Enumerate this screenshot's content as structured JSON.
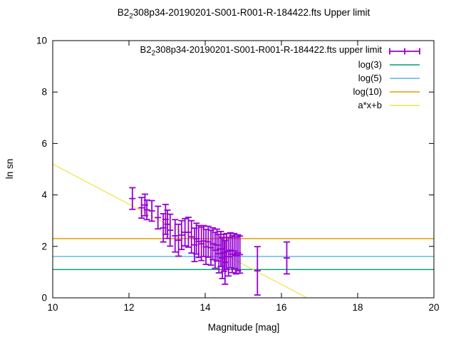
{
  "chart_data": {
    "type": "scatter",
    "title": {
      "prefix": "B2",
      "sub": "2",
      "rest": "308p34-20190201-S001-R001-R-184422.fts Upper limit"
    },
    "xlabel": "Magnitude [mag]",
    "ylabel": "ln sn",
    "xlim": [
      10,
      20
    ],
    "ylim": [
      0,
      10
    ],
    "xticks": [
      10,
      12,
      14,
      16,
      18,
      20
    ],
    "yticks": [
      0,
      2,
      4,
      6,
      8,
      10
    ],
    "grid": false,
    "legend_position": "top-right-inside",
    "background_color": "#ffffff",
    "frame_color": "#000000",
    "series": {
      "name_prefix": "B2",
      "name_sub": "2",
      "name_rest": "308p34-20190201-S001-R001-R-184422.fts upper limit",
      "style": "errorbars",
      "color": "#9400d3",
      "points": [
        [
          12.09,
          3.86,
          0.42
        ],
        [
          12.33,
          3.5,
          0.4
        ],
        [
          12.42,
          3.61,
          0.42
        ],
        [
          12.47,
          3.42,
          0.38
        ],
        [
          12.6,
          3.38,
          0.4
        ],
        [
          12.76,
          3.12,
          0.44
        ],
        [
          12.9,
          2.72,
          0.55
        ],
        [
          12.96,
          3.05,
          0.58
        ],
        [
          13.01,
          2.86,
          0.55
        ],
        [
          13.08,
          2.63,
          0.62
        ],
        [
          13.21,
          2.41,
          0.63
        ],
        [
          13.3,
          2.24,
          0.62
        ],
        [
          13.38,
          2.44,
          0.56
        ],
        [
          13.47,
          2.55,
          0.53
        ],
        [
          13.56,
          2.55,
          0.58
        ],
        [
          13.64,
          2.37,
          0.63
        ],
        [
          13.72,
          2.06,
          0.65
        ],
        [
          13.77,
          2.3,
          0.6
        ],
        [
          13.83,
          2.19,
          0.62
        ],
        [
          13.9,
          2.1,
          0.65
        ],
        [
          13.96,
          2.21,
          0.6
        ],
        [
          14.02,
          1.98,
          0.68
        ],
        [
          14.08,
          2.18,
          0.6
        ],
        [
          14.15,
          1.95,
          0.68
        ],
        [
          14.2,
          2.1,
          0.62
        ],
        [
          14.26,
          1.85,
          0.7
        ],
        [
          14.31,
          2.05,
          0.62
        ],
        [
          14.36,
          1.72,
          0.75
        ],
        [
          14.41,
          1.9,
          0.68
        ],
        [
          14.45,
          1.55,
          0.8
        ],
        [
          14.49,
          1.75,
          0.72
        ],
        [
          14.52,
          1.38,
          0.85
        ],
        [
          14.56,
          1.8,
          0.7
        ],
        [
          14.61,
          1.6,
          0.75
        ],
        [
          14.66,
          1.85,
          0.68
        ],
        [
          14.71,
          1.7,
          0.72
        ],
        [
          14.76,
          1.82,
          0.68
        ],
        [
          14.81,
          1.65,
          0.72
        ],
        [
          14.86,
          1.75,
          0.7
        ],
        [
          14.91,
          1.68,
          0.72
        ],
        [
          15.37,
          1.05,
          0.94
        ],
        [
          16.14,
          1.55,
          0.62
        ]
      ]
    },
    "ref_lines": [
      {
        "label": "log(3)",
        "value": 1.0986,
        "color": "#009e73"
      },
      {
        "label": "log(5)",
        "value": 1.6094,
        "color": "#56b4e9"
      },
      {
        "label": "log(10)",
        "value": 2.3026,
        "color": "#e69f00"
      }
    ],
    "fit_line": {
      "label": "a*x+b",
      "a": -0.78,
      "b": 13.0,
      "color": "#f0e442"
    }
  }
}
